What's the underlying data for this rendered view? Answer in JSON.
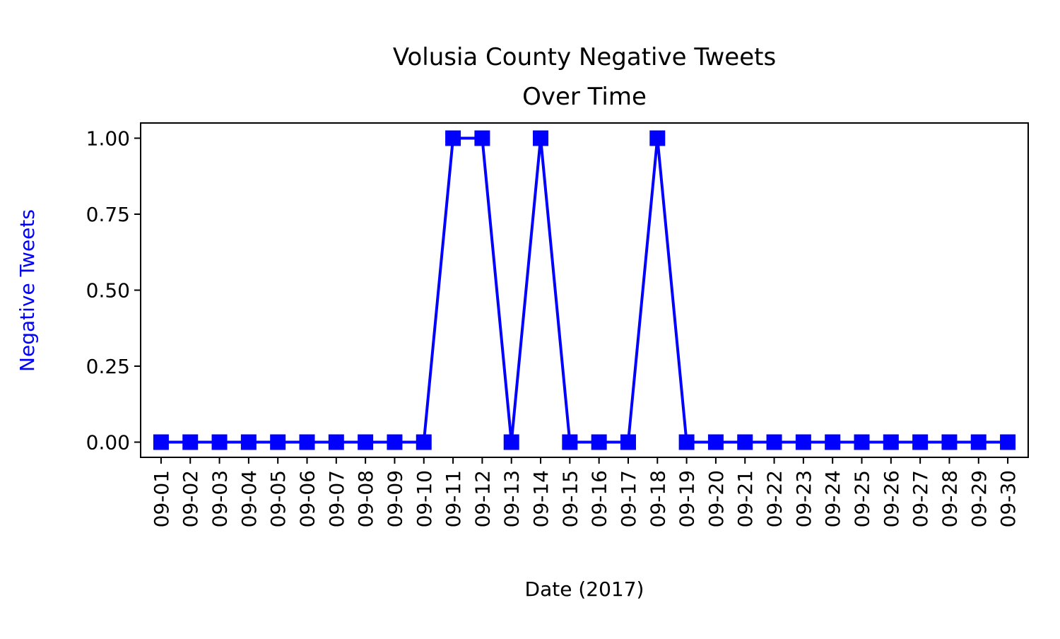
{
  "chart_data": {
    "type": "line",
    "title_lines": [
      "Volusia County Negative Tweets",
      "Over Time"
    ],
    "xlabel": "Date (2017)",
    "ylabel": "Negative Tweets",
    "categories": [
      "09-01",
      "09-02",
      "09-03",
      "09-04",
      "09-05",
      "09-06",
      "09-07",
      "09-08",
      "09-09",
      "09-10",
      "09-11",
      "09-12",
      "09-13",
      "09-14",
      "09-15",
      "09-16",
      "09-17",
      "09-18",
      "09-19",
      "09-20",
      "09-21",
      "09-22",
      "09-23",
      "09-24",
      "09-25",
      "09-26",
      "09-27",
      "09-28",
      "09-29",
      "09-30"
    ],
    "series": [
      {
        "values": [
          0,
          0,
          0,
          0,
          0,
          0,
          0,
          0,
          0,
          0,
          1,
          1,
          0,
          1,
          0,
          0,
          0,
          1,
          0,
          0,
          0,
          0,
          0,
          0,
          0,
          0,
          0,
          0,
          0,
          0
        ],
        "color": "#0000ff",
        "marker": "square"
      }
    ],
    "ylim": [
      -0.05,
      1.05
    ],
    "yticks": [
      0.0,
      0.25,
      0.5,
      0.75,
      1.0
    ],
    "ytick_labels": [
      "0.00",
      "0.25",
      "0.50",
      "0.75",
      "1.00"
    ],
    "ylabel_color": "#0000ff",
    "grid": false,
    "legend": "none"
  }
}
